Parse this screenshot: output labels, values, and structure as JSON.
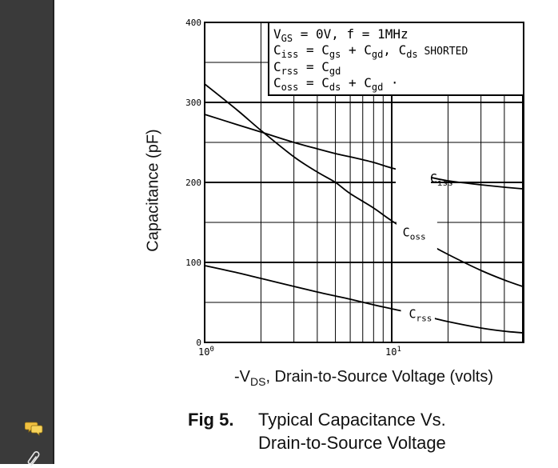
{
  "chart_data": {
    "type": "line",
    "x_scale": "log",
    "xlim": [
      1,
      50
    ],
    "ylim": [
      0,
      400
    ],
    "yticks": [
      0,
      100,
      200,
      300,
      400
    ],
    "ytick_labels": [
      "0",
      "100",
      "200",
      "300",
      "400"
    ],
    "xtick_labels": [
      {
        "base": "10",
        "exp": "0"
      },
      {
        "base": "10",
        "exp": "1"
      }
    ],
    "ylabel": "Capacitance (pF)",
    "xlabel": "-V_DS, Drain-to-Source Voltage (volts)",
    "xlabel_parts": {
      "pre": "-V",
      "sub": "DS",
      "post": ", Drain-to-Source Voltage (volts)"
    },
    "grid": true,
    "legend_box": {
      "line1": {
        "a": "V",
        "a_sub": "GS",
        "b": " = 0V,  f = 1MHz"
      },
      "line2": {
        "a": "C",
        "a_sub": "iss",
        "b": " = C",
        "b_sub": "gs",
        "c": " + C",
        "c_sub": "gd",
        "d": ",  C",
        "d_sub": "ds",
        "e": " SHORTED"
      },
      "line3": {
        "a": "C",
        "a_sub": "rss",
        "b": " = C",
        "b_sub": "gd"
      },
      "line4": {
        "a": "C",
        "a_sub": "oss",
        "b": " = C",
        "b_sub": "ds",
        "c": " + C",
        "c_sub": "gd",
        "d": " ·"
      }
    },
    "series": [
      {
        "name": "C_iss",
        "label_main": "C",
        "label_sub": "iss",
        "x": [
          1,
          1.5,
          2,
          3,
          4,
          5,
          6,
          8,
          10,
          15,
          20,
          30,
          40,
          50
        ],
        "y": [
          285,
          272,
          263,
          250,
          242,
          236,
          232,
          225,
          218,
          208,
          202,
          197,
          194,
          192
        ]
      },
      {
        "name": "C_oss",
        "label_main": "C",
        "label_sub": "oss",
        "x": [
          1,
          1.5,
          2,
          3,
          4,
          5,
          6,
          8,
          10,
          15,
          20,
          30,
          40,
          50
        ],
        "y": [
          323,
          290,
          265,
          232,
          213,
          200,
          186,
          168,
          152,
          126,
          110,
          90,
          78,
          70
        ]
      },
      {
        "name": "C_rss",
        "label_main": "C",
        "label_sub": "rss",
        "x": [
          1,
          1.5,
          2,
          3,
          4,
          5,
          6,
          8,
          10,
          15,
          20,
          30,
          40,
          50
        ],
        "y": [
          96,
          87,
          80,
          70,
          63,
          58,
          54,
          47,
          42,
          33,
          26,
          18,
          14,
          12
        ]
      }
    ]
  },
  "caption": {
    "fig": "Fig 5.",
    "line1": "Typical Capacitance Vs.",
    "line2": "Drain-to-Source Voltage"
  },
  "sidebar": {
    "icons": [
      "comment-icon",
      "paperclip-icon"
    ]
  }
}
